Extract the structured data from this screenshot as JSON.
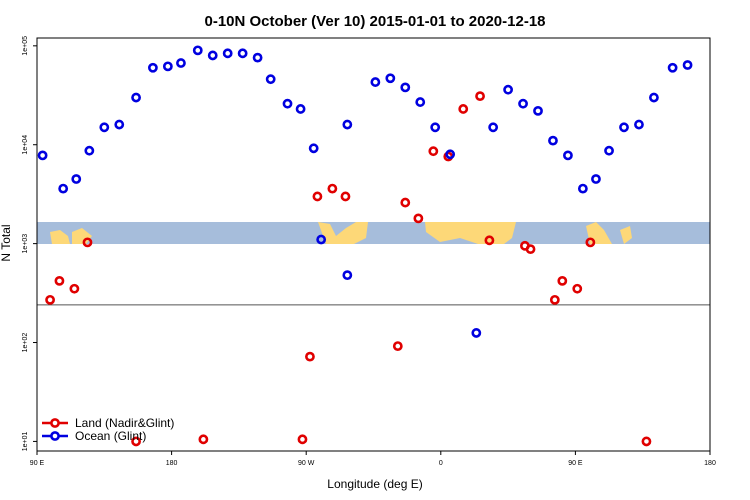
{
  "chart_data": {
    "type": "scatter",
    "title": "0-10N October (Ver 10)   2015-01-01 to 2020-12-18",
    "xlabel": "Longitude (deg E)",
    "ylabel": "N Total",
    "y_scale": "log",
    "xlim": [
      90,
      450
    ],
    "ylim": [
      8,
      120000
    ],
    "grid": false,
    "legend_position": "bottom-left",
    "x_tick_labels": [
      "90 E",
      "180",
      "90 W",
      "0",
      "90 E",
      "180"
    ],
    "y_tick_labels": [
      "1e+01",
      "1e+02",
      "1e+03",
      "1e+04",
      "1e+05"
    ],
    "reference_line_y": 240,
    "colors": {
      "land": "#e00000",
      "ocean": "#0000e0",
      "map_ocean": "#a6bddb",
      "map_land": "#fdd878"
    },
    "series": [
      {
        "name": "Land (Nadir&Glint)",
        "color": "#e00000",
        "points": [
          [
            97,
            270
          ],
          [
            102,
            420
          ],
          [
            110,
            350
          ],
          [
            117,
            1030
          ],
          [
            143,
            10
          ],
          [
            179,
            10.5
          ],
          [
            232,
            10.5
          ],
          [
            236,
            72
          ],
          [
            240,
            3000
          ],
          [
            248,
            3600
          ],
          [
            255,
            3000
          ],
          [
            283,
            92
          ],
          [
            287,
            2600
          ],
          [
            294,
            1800
          ],
          [
            302,
            8600
          ],
          [
            310,
            7600
          ],
          [
            318,
            23000
          ],
          [
            327,
            31000
          ],
          [
            332,
            1080
          ],
          [
            351,
            950
          ],
          [
            354,
            880
          ],
          [
            367,
            270
          ],
          [
            371,
            420
          ],
          [
            379,
            350
          ],
          [
            386,
            1030
          ],
          [
            416,
            10
          ]
        ]
      },
      {
        "name": "Ocean (Glint)",
        "color": "#0000e0",
        "points": [
          [
            93,
            7800
          ],
          [
            104,
            3600
          ],
          [
            111,
            4500
          ],
          [
            118,
            8700
          ],
          [
            126,
            15000
          ],
          [
            134,
            16000
          ],
          [
            143,
            30000
          ],
          [
            152,
            60000
          ],
          [
            160,
            62000
          ],
          [
            167,
            67000
          ],
          [
            176,
            90000
          ],
          [
            184,
            80000
          ],
          [
            192,
            84000
          ],
          [
            200,
            84000
          ],
          [
            208,
            76000
          ],
          [
            215,
            46000
          ],
          [
            224,
            26000
          ],
          [
            231,
            23000
          ],
          [
            238,
            9200
          ],
          [
            242,
            1100
          ],
          [
            256,
            16000
          ],
          [
            256,
            480
          ],
          [
            271,
            43000
          ],
          [
            279,
            47000
          ],
          [
            287,
            38000
          ],
          [
            295,
            27000
          ],
          [
            303,
            15000
          ],
          [
            311,
            8000
          ],
          [
            325,
            125
          ],
          [
            334,
            15000
          ],
          [
            342,
            36000
          ],
          [
            350,
            26000
          ],
          [
            358,
            22000
          ],
          [
            366,
            11000
          ],
          [
            374,
            7800
          ],
          [
            382,
            3600
          ],
          [
            389,
            4500
          ],
          [
            396,
            8700
          ],
          [
            404,
            15000
          ],
          [
            412,
            16000
          ],
          [
            420,
            30000
          ],
          [
            430,
            60000
          ],
          [
            438,
            64000
          ]
        ]
      }
    ]
  }
}
